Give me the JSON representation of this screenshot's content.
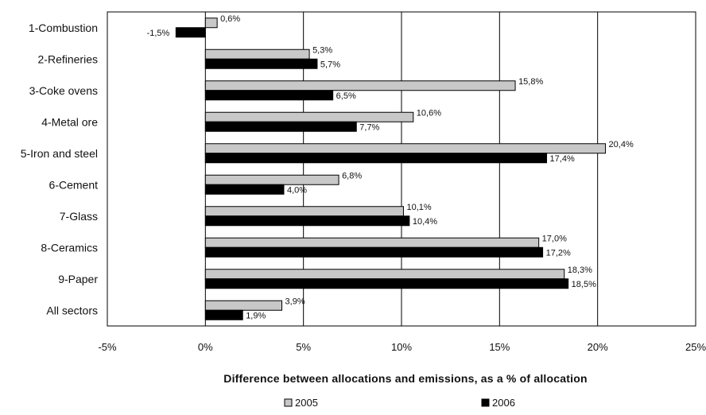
{
  "chart_data": {
    "type": "bar",
    "orientation": "horizontal",
    "categories": [
      "1-Combustion",
      "2-Refineries",
      "3-Coke ovens",
      "4-Metal ore",
      "5-Iron and steel",
      "6-Cement",
      "7-Glass",
      "8-Ceramics",
      "9-Paper",
      "All sectors"
    ],
    "series": [
      {
        "name": "2005",
        "color": "#c8c8c8",
        "values": [
          0.6,
          5.3,
          15.8,
          10.6,
          20.4,
          6.8,
          10.1,
          17.0,
          18.3,
          3.9
        ],
        "labels": [
          "0,6%",
          "5,3%",
          "15,8%",
          "10,6%",
          "20,4%",
          "6,8%",
          "10,1%",
          "17,0%",
          "18,3%",
          "3,9%"
        ]
      },
      {
        "name": "2006",
        "color": "#000000",
        "values": [
          -1.5,
          5.7,
          6.5,
          7.7,
          17.4,
          4.0,
          10.4,
          17.2,
          18.5,
          1.9
        ],
        "labels": [
          "-1,5%",
          "5,7%",
          "6,5%",
          "7,7%",
          "17,4%",
          "4,0%",
          "10,4%",
          "17,2%",
          "18,5%",
          "1,9%"
        ]
      }
    ],
    "xlim": [
      -5,
      25
    ],
    "xticks": [
      -5,
      0,
      5,
      10,
      15,
      20,
      25
    ],
    "xtick_labels": [
      "-5%",
      "0%",
      "5%",
      "10%",
      "15%",
      "20%",
      "25%"
    ],
    "xlabel": "Difference between allocations and emissions, as a % of allocation",
    "grid": "vertical",
    "legend": "bottom"
  }
}
